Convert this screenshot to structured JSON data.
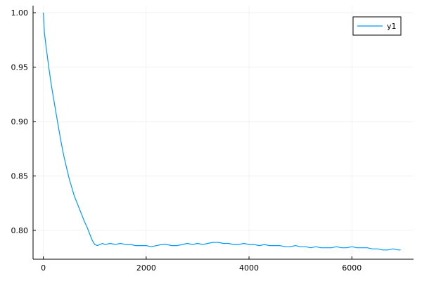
{
  "chart_data": {
    "type": "line",
    "title": "",
    "xlabel": "",
    "ylabel": "",
    "xlim": [
      -200,
      7200
    ],
    "ylim": [
      0.7735,
      1.0065
    ],
    "xticks": [
      0,
      2000,
      4000,
      6000
    ],
    "xtick_labels": [
      "0",
      "2000",
      "4000",
      "6000"
    ],
    "yticks": [
      0.8,
      0.85,
      0.9,
      0.95,
      1.0
    ],
    "ytick_labels": [
      "0.80",
      "0.85",
      "0.90",
      "0.95",
      "1.00"
    ],
    "grid": true,
    "legend": {
      "position": "top-right",
      "entries": [
        "y1"
      ]
    },
    "series": [
      {
        "name": "y1",
        "color": "#009AF9",
        "x": [
          0,
          20,
          50,
          100,
          150,
          200,
          250,
          300,
          350,
          400,
          450,
          500,
          550,
          600,
          650,
          700,
          750,
          800,
          850,
          900,
          950,
          1000,
          1050,
          1100,
          1150,
          1200,
          1300,
          1400,
          1500,
          1600,
          1700,
          1800,
          1900,
          2000,
          2100,
          2200,
          2300,
          2400,
          2500,
          2600,
          2700,
          2800,
          2900,
          3000,
          3100,
          3200,
          3300,
          3400,
          3500,
          3600,
          3700,
          3800,
          3900,
          4000,
          4100,
          4200,
          4300,
          4400,
          4500,
          4600,
          4700,
          4800,
          4900,
          5000,
          5100,
          5200,
          5300,
          5400,
          5500,
          5600,
          5700,
          5800,
          5900,
          6000,
          6100,
          6200,
          6300,
          6400,
          6500,
          6600,
          6700,
          6800,
          6900,
          6950
        ],
        "values": [
          1.0,
          0.982,
          0.97,
          0.952,
          0.935,
          0.921,
          0.907,
          0.893,
          0.88,
          0.868,
          0.858,
          0.848,
          0.84,
          0.832,
          0.826,
          0.82,
          0.814,
          0.808,
          0.803,
          0.797,
          0.791,
          0.787,
          0.786,
          0.787,
          0.788,
          0.787,
          0.788,
          0.787,
          0.788,
          0.787,
          0.787,
          0.786,
          0.786,
          0.786,
          0.785,
          0.786,
          0.787,
          0.787,
          0.786,
          0.786,
          0.787,
          0.788,
          0.787,
          0.788,
          0.787,
          0.788,
          0.789,
          0.789,
          0.788,
          0.788,
          0.787,
          0.787,
          0.788,
          0.787,
          0.787,
          0.786,
          0.787,
          0.786,
          0.786,
          0.786,
          0.785,
          0.785,
          0.786,
          0.785,
          0.785,
          0.784,
          0.785,
          0.784,
          0.784,
          0.784,
          0.785,
          0.784,
          0.784,
          0.785,
          0.784,
          0.784,
          0.784,
          0.783,
          0.783,
          0.782,
          0.782,
          0.783,
          0.782,
          0.782
        ]
      }
    ]
  }
}
